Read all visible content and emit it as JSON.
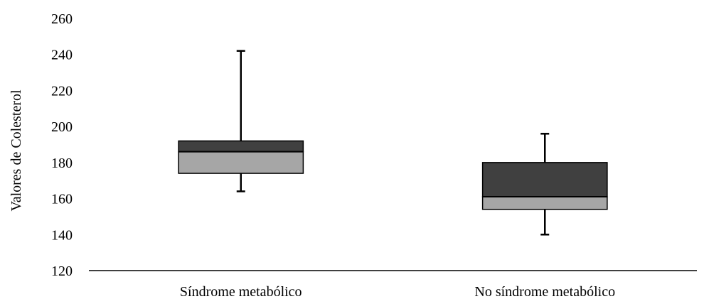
{
  "chart_data": {
    "type": "box",
    "categories": [
      "Síndrome metabólico",
      "No síndrome metabólico"
    ],
    "boxes": [
      {
        "min": 164,
        "q1": 174,
        "median": 186,
        "q3": 192,
        "max": 242
      },
      {
        "min": 140,
        "q1": 154,
        "median": 161,
        "q3": 180,
        "max": 196
      }
    ],
    "ylabel": "Valores de Colesterol",
    "xlabel": "",
    "ylim": [
      120,
      260
    ],
    "yticks": [
      120,
      140,
      160,
      180,
      200,
      220,
      240,
      260
    ],
    "grid": false,
    "legend": "none",
    "colors": {
      "lower_box": "#a6a6a6",
      "upper_box": "#404040",
      "stroke": "#000000"
    }
  }
}
